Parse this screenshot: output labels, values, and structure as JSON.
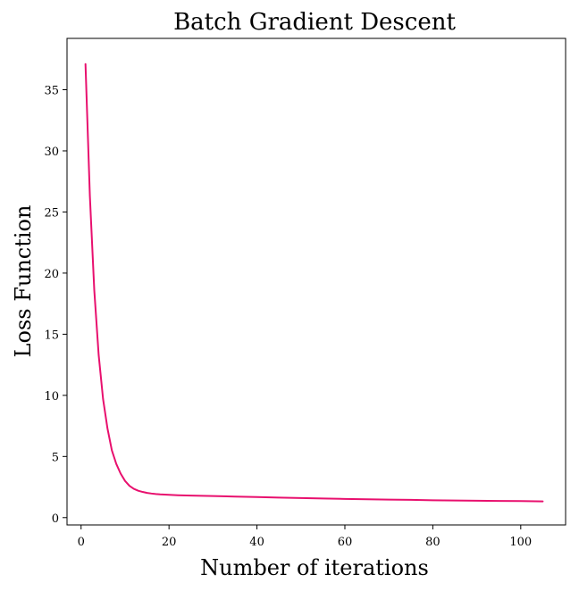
{
  "chart_data": {
    "type": "line",
    "title": "Batch Gradient Descent",
    "xlabel": "Number of iterations",
    "ylabel": "Loss Function",
    "xlim": [
      -3.2,
      110.2
    ],
    "ylim": [
      -0.6,
      39.2
    ],
    "xticks": [
      0,
      20,
      40,
      60,
      80,
      100
    ],
    "yticks": [
      0,
      5,
      10,
      15,
      20,
      25,
      30,
      35
    ],
    "grid": false,
    "color": "#e8106e",
    "series": [
      {
        "x": [
          1,
          2,
          3,
          4,
          5,
          6,
          7,
          8,
          9,
          10,
          11,
          12,
          13,
          14,
          15,
          16,
          17,
          18,
          19,
          20,
          22,
          25,
          30,
          35,
          40,
          45,
          50,
          55,
          60,
          65,
          70,
          75,
          80,
          85,
          90,
          95,
          100,
          105
        ],
        "values": [
          37.1,
          26.3,
          18.6,
          13.3,
          9.7,
          7.3,
          5.5,
          4.4,
          3.6,
          3.0,
          2.6,
          2.35,
          2.2,
          2.1,
          2.02,
          1.97,
          1.93,
          1.9,
          1.88,
          1.86,
          1.83,
          1.8,
          1.76,
          1.72,
          1.68,
          1.64,
          1.6,
          1.56,
          1.53,
          1.5,
          1.47,
          1.45,
          1.42,
          1.4,
          1.38,
          1.36,
          1.35,
          1.33
        ]
      }
    ]
  }
}
